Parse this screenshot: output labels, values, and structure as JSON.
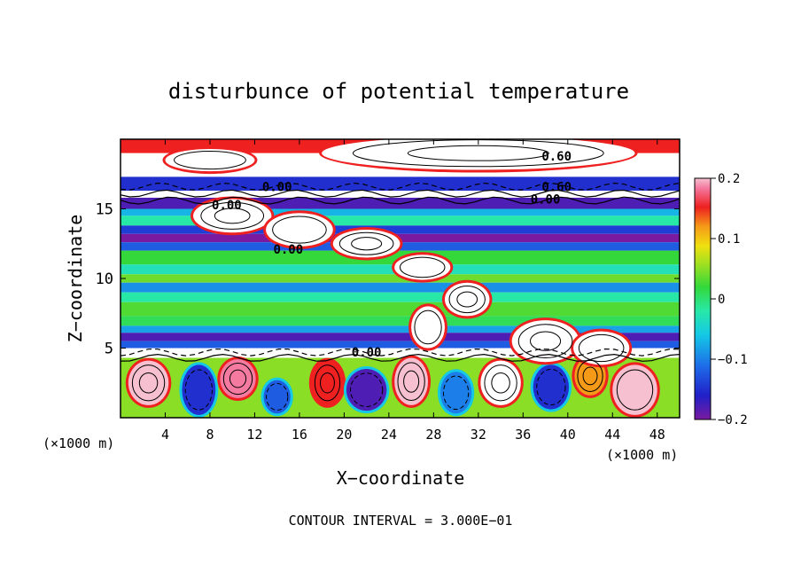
{
  "chart_data": {
    "type": "heatmap",
    "title": "disturbunce of potential temperature",
    "xlabel": "X−coordinate",
    "ylabel": "Z−coordinate",
    "x_unit_left": "(×1000 m)",
    "x_unit_right": "(×1000 m)",
    "xlim": [
      0,
      50
    ],
    "ylim": [
      0,
      20
    ],
    "x_ticks": [
      4,
      8,
      12,
      16,
      20,
      24,
      28,
      32,
      36,
      40,
      44,
      48
    ],
    "y_ticks": [
      5,
      10,
      15
    ],
    "colorbar": {
      "min": -0.2,
      "max": 0.2,
      "tick_values": [
        0.2,
        0.1,
        0,
        -0.1,
        -0.2
      ],
      "tick_labels": [
        "0.2",
        "0.1",
        "0",
        "−0.1",
        "−0.2"
      ]
    },
    "contour_interval_text": "CONTOUR INTERVAL = 3.000E−01",
    "contour_labels": [
      {
        "text": "0.00",
        "x": 14.0,
        "z": 16.6
      },
      {
        "text": "0.00",
        "x": 9.5,
        "z": 15.3
      },
      {
        "text": "0.00",
        "x": 15.0,
        "z": 12.1
      },
      {
        "text": "0.00",
        "x": 22.0,
        "z": 4.7
      },
      {
        "text": "0.60",
        "x": 39.0,
        "z": 18.8
      },
      {
        "text": "0.60",
        "x": 39.0,
        "z": 16.6
      },
      {
        "text": "0.00",
        "x": 38.0,
        "z": 15.7
      }
    ],
    "bands": [
      {
        "z0": 19.0,
        "z1": 20.0,
        "value": 0.15
      },
      {
        "z0": 17.3,
        "z1": 19.0,
        "value": 0.25
      },
      {
        "z0": 16.3,
        "z1": 17.3,
        "value": -0.15
      },
      {
        "z0": 15.8,
        "z1": 16.3,
        "value": 0.25
      },
      {
        "z0": 15.0,
        "z1": 15.8,
        "value": -0.18
      },
      {
        "z0": 14.5,
        "z1": 15.0,
        "value": -0.07
      },
      {
        "z0": 13.8,
        "z1": 14.5,
        "value": -0.02
      },
      {
        "z0": 13.2,
        "z1": 13.8,
        "value": -0.14
      },
      {
        "z0": 12.6,
        "z1": 13.2,
        "value": -0.2
      },
      {
        "z0": 12.0,
        "z1": 12.6,
        "value": -0.12
      },
      {
        "z0": 11.0,
        "z1": 12.0,
        "value": 0.02
      },
      {
        "z0": 10.3,
        "z1": 11.0,
        "value": -0.03
      },
      {
        "z0": 9.7,
        "z1": 10.3,
        "value": 0.04
      },
      {
        "z0": 9.0,
        "z1": 9.7,
        "value": -0.09
      },
      {
        "z0": 8.3,
        "z1": 9.0,
        "value": -0.02
      },
      {
        "z0": 7.3,
        "z1": 8.3,
        "value": 0.03
      },
      {
        "z0": 6.6,
        "z1": 7.3,
        "value": 0.01
      },
      {
        "z0": 6.1,
        "z1": 6.6,
        "value": -0.08
      },
      {
        "z0": 5.5,
        "z1": 6.1,
        "value": -0.18
      },
      {
        "z0": 5.0,
        "z1": 5.5,
        "value": -0.12
      },
      {
        "z0": 4.3,
        "z1": 5.0,
        "value": 0.25
      },
      {
        "z0": 0.0,
        "z1": 4.3,
        "value": 0.05
      }
    ],
    "blobs": [
      {
        "x": 2.5,
        "z": 2.5,
        "rx": 1.8,
        "rz": 1.6,
        "value": 0.2
      },
      {
        "x": 7.0,
        "z": 2.0,
        "rx": 1.5,
        "rz": 1.8,
        "value": -0.15
      },
      {
        "x": 10.5,
        "z": 2.8,
        "rx": 1.6,
        "rz": 1.4,
        "value": 0.18
      },
      {
        "x": 14.0,
        "z": 1.5,
        "rx": 1.2,
        "rz": 1.2,
        "value": -0.12
      },
      {
        "x": 18.5,
        "z": 2.5,
        "rx": 1.4,
        "rz": 1.6,
        "value": 0.15
      },
      {
        "x": 22.0,
        "z": 2.0,
        "rx": 1.8,
        "rz": 1.5,
        "value": -0.18
      },
      {
        "x": 26.0,
        "z": 2.6,
        "rx": 1.5,
        "rz": 1.7,
        "value": 0.2
      },
      {
        "x": 30.0,
        "z": 1.8,
        "rx": 1.4,
        "rz": 1.5,
        "value": -0.1
      },
      {
        "x": 34.0,
        "z": 2.5,
        "rx": 1.8,
        "rz": 1.6,
        "value": 0.25
      },
      {
        "x": 38.5,
        "z": 2.2,
        "rx": 1.6,
        "rz": 1.6,
        "value": -0.15
      },
      {
        "x": 42.0,
        "z": 3.0,
        "rx": 1.4,
        "rz": 1.4,
        "value": 0.12
      },
      {
        "x": 46.0,
        "z": 2.0,
        "rx": 2.0,
        "rz": 1.8,
        "value": 0.2
      },
      {
        "x": 10.0,
        "z": 14.5,
        "rx": 3.5,
        "rz": 1.2,
        "value": 0.25
      },
      {
        "x": 16.0,
        "z": 13.5,
        "rx": 3.0,
        "rz": 1.2,
        "value": 0.25
      },
      {
        "x": 22.0,
        "z": 12.5,
        "rx": 3.0,
        "rz": 1.0,
        "value": 0.25
      },
      {
        "x": 27.0,
        "z": 10.8,
        "rx": 2.5,
        "rz": 0.9,
        "value": 0.25
      },
      {
        "x": 31.0,
        "z": 8.5,
        "rx": 2.0,
        "rz": 1.2,
        "value": 0.25
      },
      {
        "x": 27.5,
        "z": 6.5,
        "rx": 1.5,
        "rz": 1.5,
        "value": 0.25
      },
      {
        "x": 38.0,
        "z": 5.5,
        "rx": 3.0,
        "rz": 1.5,
        "value": 0.25
      },
      {
        "x": 43.0,
        "z": 5.0,
        "rx": 2.5,
        "rz": 1.2,
        "value": 0.25
      },
      {
        "x": 32.0,
        "z": 19.0,
        "rx": 14.0,
        "rz": 1.2,
        "value": 0.25
      },
      {
        "x": 8.0,
        "z": 18.5,
        "rx": 4.0,
        "rz": 0.8,
        "value": 0.25
      }
    ]
  }
}
